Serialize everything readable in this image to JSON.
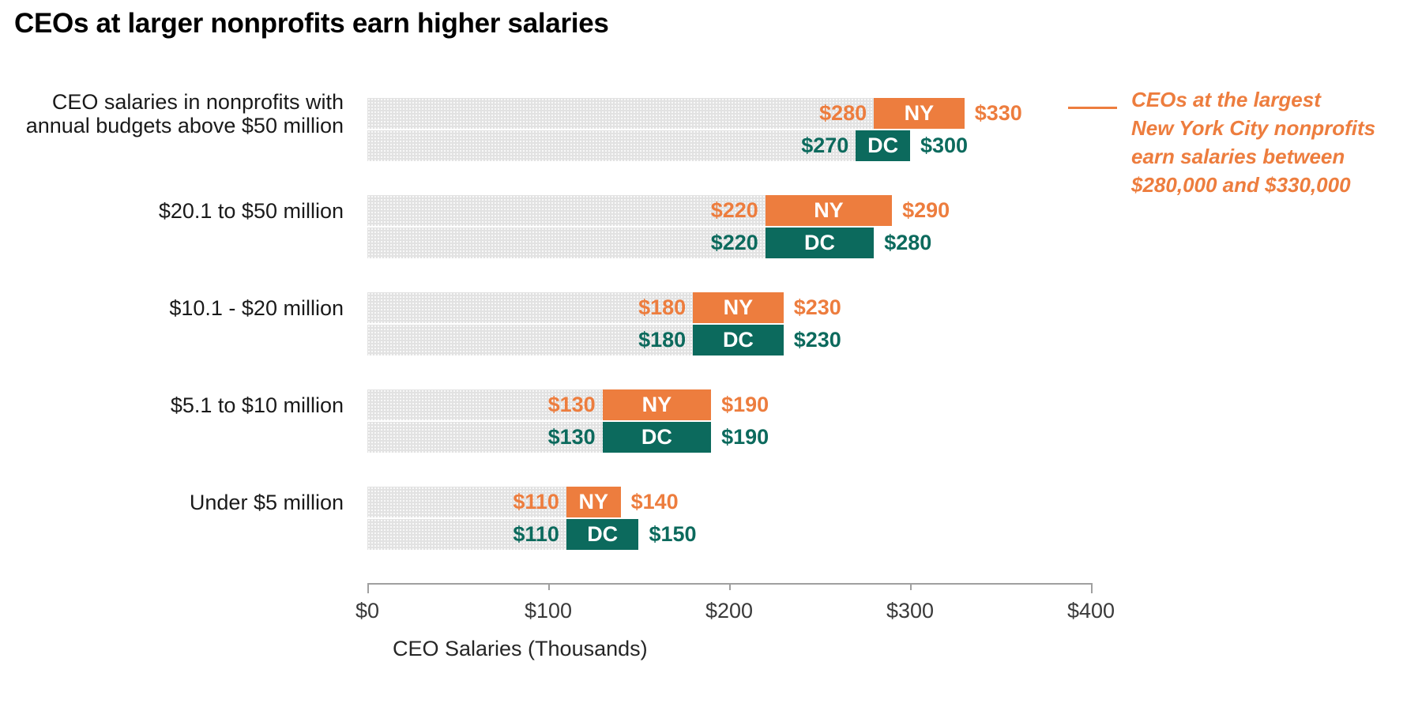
{
  "title": "CEOs at larger nonprofits earn higher salaries",
  "chart_data": {
    "type": "bar",
    "subtype": "horizontal-range-bars",
    "unit": "thousands of USD",
    "title": "CEOs at larger nonprofits earn higher salaries",
    "xlabel": "CEO Salaries (Thousands)",
    "xlim": [
      0,
      400
    ],
    "x_ticks": [
      {
        "value": 0,
        "label": "$0"
      },
      {
        "value": 100,
        "label": "$100"
      },
      {
        "value": 200,
        "label": "$200"
      },
      {
        "value": 300,
        "label": "$300"
      },
      {
        "value": 400,
        "label": "$400"
      }
    ],
    "categories": [
      "CEO salaries in nonprofits with\nannual budgets above $50 million",
      "$20.1 to $50 million",
      "$10.1 - $20 million",
      "$5.1 to $10 million",
      "Under $5 million"
    ],
    "series": [
      {
        "name": "NY",
        "color": "#ED7D3E",
        "ranges": [
          {
            "min": 280,
            "max": 330,
            "min_label": "$280",
            "max_label": "$330"
          },
          {
            "min": 220,
            "max": 290,
            "min_label": "$220",
            "max_label": "$290"
          },
          {
            "min": 180,
            "max": 230,
            "min_label": "$180",
            "max_label": "$230"
          },
          {
            "min": 130,
            "max": 190,
            "min_label": "$130",
            "max_label": "$190"
          },
          {
            "min": 110,
            "max": 140,
            "min_label": "$110",
            "max_label": "$140"
          }
        ]
      },
      {
        "name": "DC",
        "color": "#0C6A5D",
        "ranges": [
          {
            "min": 270,
            "max": 300,
            "min_label": "$270",
            "max_label": "$300"
          },
          {
            "min": 220,
            "max": 280,
            "min_label": "$220",
            "max_label": "$280"
          },
          {
            "min": 180,
            "max": 230,
            "min_label": "$180",
            "max_label": "$230"
          },
          {
            "min": 130,
            "max": 190,
            "min_label": "$130",
            "max_label": "$190"
          },
          {
            "min": 110,
            "max": 150,
            "min_label": "$110",
            "max_label": "$150"
          }
        ]
      }
    ],
    "legend_position": "none (series labeled inside bars)",
    "grid": false
  },
  "annotation": {
    "lines": [
      "CEOs at the largest",
      "New York City nonprofits",
      "earn salaries between",
      "$280,000 and $330,000"
    ],
    "color": "#ED7D3E"
  },
  "colors": {
    "ny_orange": "#ED7D3E",
    "dc_teal": "#0C6A5D",
    "bar_track_gray": "#E2E2E2",
    "axis_gray": "#A0A0A0",
    "text_dark": "#1A1A1A"
  }
}
